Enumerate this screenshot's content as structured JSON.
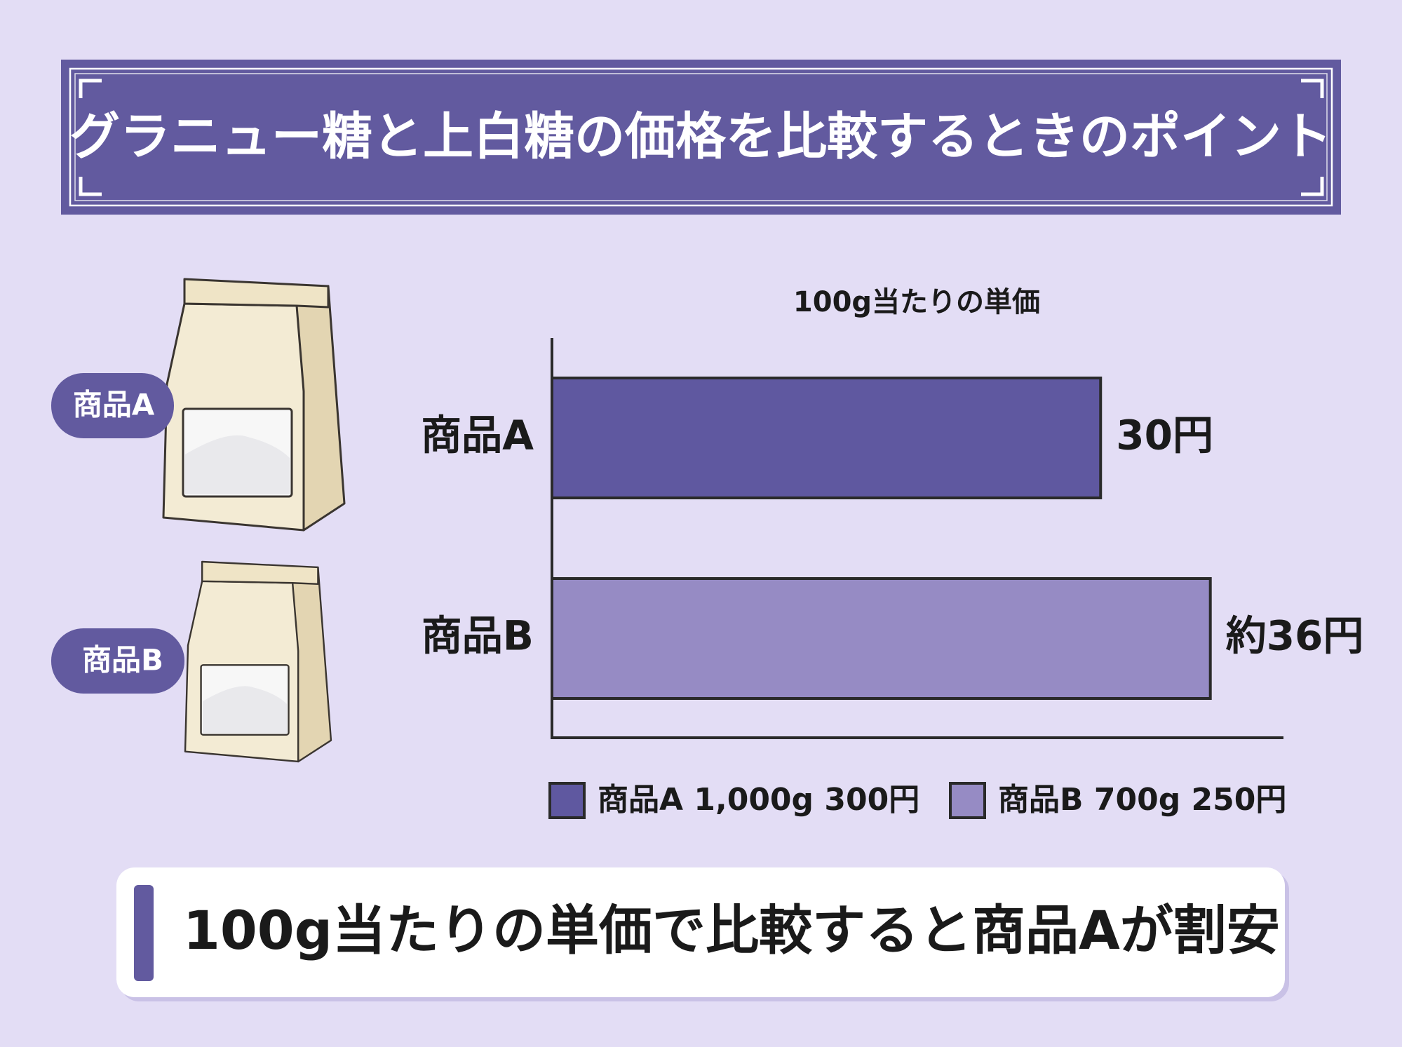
{
  "header": {
    "title": "グラニュー糖と上白糖の価格を比較するときのポイント"
  },
  "products": [
    {
      "label": "商品A"
    },
    {
      "label": "商品B"
    }
  ],
  "chart_data": {
    "type": "bar",
    "orientation": "horizontal",
    "title": "100g当たりの単価",
    "categories": [
      "商品A",
      "商品B"
    ],
    "values": [
      30,
      36
    ],
    "value_labels": [
      "30円",
      "約36円"
    ],
    "colors": [
      "#5f58a0",
      "#968bc4"
    ],
    "xlim": [
      0,
      40
    ],
    "legend": [
      "商品A 1,000g 300円",
      "商品B 700g 250円"
    ]
  },
  "footer": {
    "text": "100g当たりの単価で比較すると商品Aが割安"
  }
}
